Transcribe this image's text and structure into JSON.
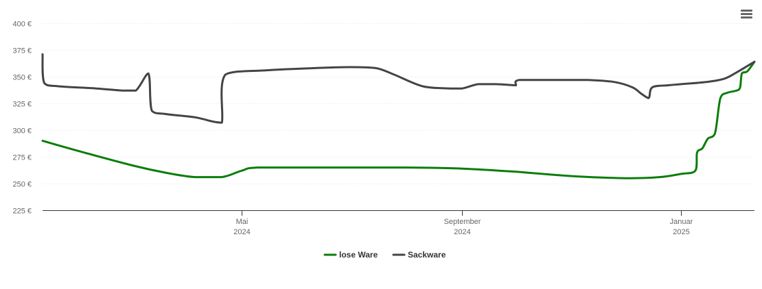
{
  "chart_data": {
    "type": "line",
    "title": "",
    "xlabel": "",
    "ylabel": "",
    "ylim": [
      225,
      400
    ],
    "y_ticks": [
      {
        "value": 225,
        "label": "225 €"
      },
      {
        "value": 250,
        "label": "250 €"
      },
      {
        "value": 275,
        "label": "275 €"
      },
      {
        "value": 300,
        "label": "300 €"
      },
      {
        "value": 325,
        "label": "325 €"
      },
      {
        "value": 350,
        "label": "350 €"
      },
      {
        "value": 375,
        "label": "375 €"
      },
      {
        "value": 400,
        "label": "400 €"
      }
    ],
    "xlim": [
      "2024-01-11",
      "2025-02-11"
    ],
    "x_ticks": [
      {
        "date": "2024-05-01",
        "month": "Mai",
        "year": "2024"
      },
      {
        "date": "2024-09-01",
        "month": "September",
        "year": "2024"
      },
      {
        "date": "2025-01-01",
        "month": "Januar",
        "year": "2025"
      }
    ],
    "grid": true,
    "legend_position": "bottom-center",
    "series": [
      {
        "name": "lose Ware",
        "color": "#0a7d0a",
        "points": [
          [
            "2024-01-11",
            290
          ],
          [
            "2024-02-01",
            280
          ],
          [
            "2024-03-01",
            267
          ],
          [
            "2024-03-20",
            260
          ],
          [
            "2024-04-05",
            256
          ],
          [
            "2024-04-20",
            256
          ],
          [
            "2024-05-01",
            262
          ],
          [
            "2024-05-10",
            265
          ],
          [
            "2024-06-15",
            265
          ],
          [
            "2024-08-01",
            265
          ],
          [
            "2024-09-01",
            264
          ],
          [
            "2024-10-01",
            261
          ],
          [
            "2024-11-01",
            257
          ],
          [
            "2024-12-01",
            255
          ],
          [
            "2024-12-20",
            256
          ],
          [
            "2025-01-01",
            259
          ],
          [
            "2025-01-09",
            262
          ],
          [
            "2025-01-10",
            279
          ],
          [
            "2025-01-13",
            283
          ],
          [
            "2025-01-16",
            292
          ],
          [
            "2025-01-20",
            297
          ],
          [
            "2025-01-23",
            330
          ],
          [
            "2025-01-27",
            335
          ],
          [
            "2025-02-01",
            337
          ],
          [
            "2025-02-03",
            340
          ],
          [
            "2025-02-04",
            353
          ],
          [
            "2025-02-07",
            355
          ],
          [
            "2025-02-11",
            364
          ]
        ]
      },
      {
        "name": "Sackware",
        "color": "#434348",
        "points": [
          [
            "2024-01-11",
            371
          ],
          [
            "2024-01-12",
            344
          ],
          [
            "2024-01-20",
            341
          ],
          [
            "2024-02-10",
            339
          ],
          [
            "2024-02-25",
            337
          ],
          [
            "2024-03-03",
            337
          ],
          [
            "2024-03-10",
            353
          ],
          [
            "2024-03-12",
            318
          ],
          [
            "2024-03-20",
            315
          ],
          [
            "2024-04-05",
            312
          ],
          [
            "2024-04-15",
            308
          ],
          [
            "2024-04-20",
            307
          ],
          [
            "2024-04-22",
            352
          ],
          [
            "2024-05-15",
            356
          ],
          [
            "2024-06-10",
            358
          ],
          [
            "2024-07-01",
            359
          ],
          [
            "2024-07-15",
            358
          ],
          [
            "2024-07-25",
            352
          ],
          [
            "2024-08-10",
            341
          ],
          [
            "2024-08-25",
            339
          ],
          [
            "2024-09-01",
            339
          ],
          [
            "2024-09-10",
            343
          ],
          [
            "2024-09-20",
            343
          ],
          [
            "2024-09-30",
            342
          ],
          [
            "2024-10-01",
            342
          ],
          [
            "2024-10-03",
            347
          ],
          [
            "2024-10-25",
            347
          ],
          [
            "2024-11-10",
            347
          ],
          [
            "2024-11-25",
            345
          ],
          [
            "2024-12-05",
            340
          ],
          [
            "2024-12-10",
            334
          ],
          [
            "2024-12-14",
            330
          ],
          [
            "2024-12-16",
            340
          ],
          [
            "2024-12-25",
            342
          ],
          [
            "2025-01-01",
            343
          ],
          [
            "2025-01-15",
            345
          ],
          [
            "2025-01-25",
            348
          ],
          [
            "2025-02-01",
            354
          ],
          [
            "2025-02-11",
            364
          ]
        ]
      }
    ]
  },
  "toolbar": {
    "menu_icon": "hamburger-menu-icon"
  }
}
